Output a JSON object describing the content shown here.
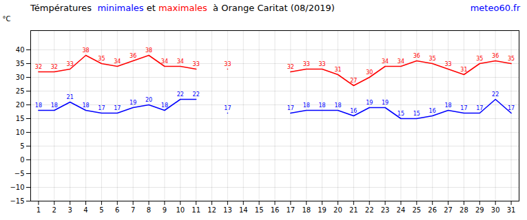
{
  "chart_data": {
    "type": "line",
    "title": "Témpératures  minimales et maximales  à Orange Caritat (08/2019)",
    "ylabel": "°C",
    "annotations": [
      {
        "text": "meteo60.fr",
        "color": "blue"
      }
    ],
    "x": [
      1,
      2,
      3,
      4,
      5,
      6,
      7,
      8,
      9,
      10,
      11,
      12,
      13,
      14,
      15,
      16,
      17,
      18,
      19,
      20,
      21,
      22,
      23,
      24,
      25,
      26,
      27,
      28,
      29,
      30,
      31
    ],
    "series": [
      {
        "name": "minimales",
        "color": "blue",
        "values": [
          18,
          18,
          21,
          18,
          17,
          17,
          19,
          20,
          18,
          22,
          22,
          null,
          17,
          null,
          null,
          null,
          17,
          18,
          18,
          18,
          16,
          19,
          19,
          15,
          15,
          16,
          18,
          17,
          17,
          22,
          17
        ]
      },
      {
        "name": "maximales",
        "color": "red",
        "values": [
          32,
          32,
          33,
          38,
          35,
          34,
          36,
          38,
          34,
          34,
          33,
          null,
          33,
          null,
          null,
          null,
          32,
          33,
          33,
          31,
          27,
          30,
          34,
          34,
          36,
          35,
          33,
          31,
          35,
          36,
          35
        ]
      }
    ],
    "xlim": [
      0.5,
      31.5
    ],
    "xticks": [
      1,
      2,
      3,
      4,
      5,
      6,
      7,
      8,
      9,
      10,
      11,
      12,
      13,
      14,
      15,
      16,
      17,
      18,
      19,
      20,
      21,
      22,
      23,
      24,
      25,
      26,
      27,
      28,
      29,
      30,
      31
    ],
    "ylim": [
      -15,
      47
    ],
    "yticks": [
      -15,
      -10,
      -5,
      0,
      5,
      10,
      15,
      20,
      25,
      30,
      35,
      40
    ],
    "grid": true,
    "data_labels": true
  }
}
